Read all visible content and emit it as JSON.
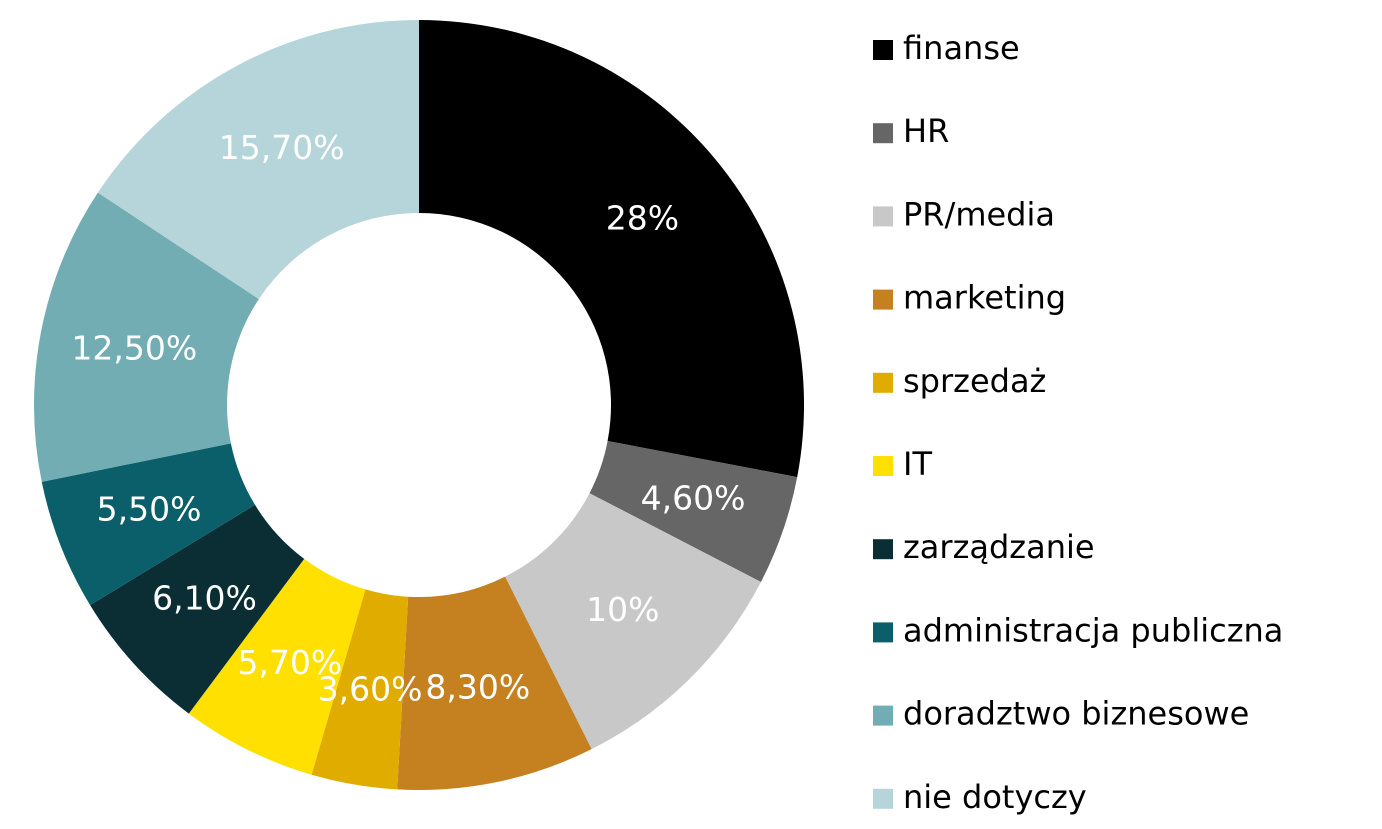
{
  "chart_data": {
    "type": "pie",
    "categories": [
      "finanse",
      "HR",
      "PR/media",
      "marketing",
      "sprzedaż",
      "IT",
      "zarządzanie",
      "administracja publiczna",
      "doradztwo biznesowe",
      "nie dotyczy"
    ],
    "values": [
      28,
      4.6,
      10,
      8.3,
      3.6,
      5.7,
      6.1,
      5.5,
      12.5,
      15.7
    ],
    "value_labels": [
      "28%",
      "4,60%",
      "10%",
      "8,30%",
      "3,60%",
      "5,70%",
      "6,10%",
      "5,50%",
      "12,50%",
      "15,70%"
    ],
    "colors": [
      "#000000",
      "#666666",
      "#c8c8c8",
      "#c58020",
      "#e0ac00",
      "#ffe000",
      "#0a2e33",
      "#0b5f6b",
      "#72adb4",
      "#b5d5da"
    ],
    "legend": "right"
  }
}
